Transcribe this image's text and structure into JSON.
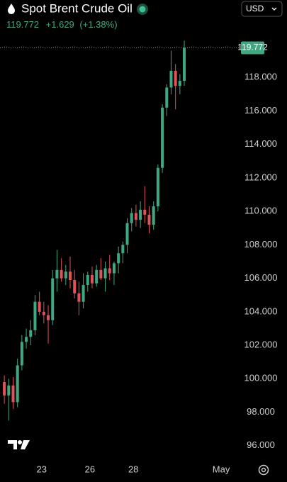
{
  "header": {
    "title": "Spot Brent Crude Oil",
    "last": "119.772",
    "change": "+1.629",
    "change_pct": "(+1.38%)",
    "currency": "USD"
  },
  "chart_data": {
    "type": "candlestick",
    "x": [
      0,
      1,
      2,
      3,
      4,
      5,
      6,
      7,
      8,
      9,
      10,
      11,
      12,
      13,
      14,
      15,
      16,
      17,
      18,
      19,
      20,
      21,
      22,
      23,
      24,
      25,
      26,
      27,
      28,
      29,
      30,
      31,
      32,
      33,
      34,
      35,
      36,
      37,
      38,
      39,
      40,
      41
    ],
    "open": [
      99.8,
      99.0,
      99.6,
      98.6,
      100.8,
      102.2,
      102.5,
      102.9,
      104.6,
      104.0,
      103.8,
      103.5,
      106.0,
      106.5,
      106.0,
      106.4,
      105.9,
      105.1,
      104.6,
      105.6,
      106.2,
      105.7,
      106.5,
      106.0,
      106.6,
      106.3,
      106.9,
      107.5,
      108.0,
      109.3,
      109.9,
      109.5,
      110.1,
      109.8,
      109.2,
      110.3,
      112.6,
      116.2,
      117.4,
      118.4,
      117.5,
      117.8
    ],
    "high": [
      100.2,
      100.0,
      100.1,
      101.2,
      102.6,
      103.0,
      103.5,
      105.0,
      105.2,
      104.6,
      104.4,
      106.5,
      107.7,
      107.2,
      106.8,
      107.3,
      106.5,
      105.8,
      106.3,
      106.4,
      106.7,
      106.8,
      107.2,
      107.0,
      107.4,
      107.0,
      107.9,
      108.2,
      109.6,
      110.2,
      110.4,
      110.6,
      111.5,
      110.3,
      110.6,
      112.8,
      116.4,
      117.6,
      119.6,
      118.8,
      118.2,
      120.2
    ],
    "low": [
      98.5,
      97.5,
      98.2,
      98.3,
      100.5,
      101.8,
      102.0,
      102.6,
      103.8,
      103.3,
      102.1,
      103.2,
      105.2,
      105.8,
      105.6,
      105.4,
      104.8,
      103.8,
      104.2,
      105.2,
      105.4,
      105.5,
      105.9,
      105.2,
      105.9,
      105.6,
      106.3,
      106.9,
      107.5,
      108.8,
      109.1,
      109.0,
      109.3,
      108.7,
      108.9,
      110.0,
      112.3,
      115.7,
      117.0,
      116.1,
      117.0,
      117.5
    ],
    "close": [
      99.0,
      99.6,
      98.6,
      100.8,
      102.2,
      102.5,
      102.9,
      104.6,
      104.0,
      103.8,
      103.5,
      106.0,
      106.5,
      106.0,
      106.4,
      105.9,
      105.1,
      104.6,
      105.6,
      106.2,
      105.7,
      106.5,
      106.0,
      106.6,
      106.3,
      106.9,
      107.5,
      108.0,
      109.3,
      109.9,
      109.5,
      110.1,
      109.8,
      109.2,
      110.3,
      112.6,
      116.2,
      117.4,
      118.4,
      117.5,
      117.8,
      119.772
    ],
    "up_color": "#3fa882",
    "down_color": "#e0525a",
    "xlim": [
      -0.5,
      53.1
    ],
    "xticks": [
      {
        "value": 8.5,
        "label": "23"
      },
      {
        "value": 19.5,
        "label": "26"
      },
      {
        "value": 29.4,
        "label": "28"
      },
      {
        "value": 49.4,
        "label": "May"
      }
    ],
    "ylim": [
      95.1,
      120.3
    ],
    "yticks": [
      {
        "value": 96,
        "label": "96.000"
      },
      {
        "value": 98,
        "label": "98.000"
      },
      {
        "value": 100,
        "label": "100.000"
      },
      {
        "value": 102,
        "label": "102.000"
      },
      {
        "value": 104,
        "label": "104.000"
      },
      {
        "value": 106,
        "label": "106.000"
      },
      {
        "value": 108,
        "label": "108.000"
      },
      {
        "value": 110,
        "label": "110.000"
      },
      {
        "value": 112,
        "label": "112.000"
      },
      {
        "value": 114,
        "label": "114.000"
      },
      {
        "value": 116,
        "label": "116.000"
      },
      {
        "value": 118,
        "label": "118.000"
      }
    ],
    "grid": false
  }
}
